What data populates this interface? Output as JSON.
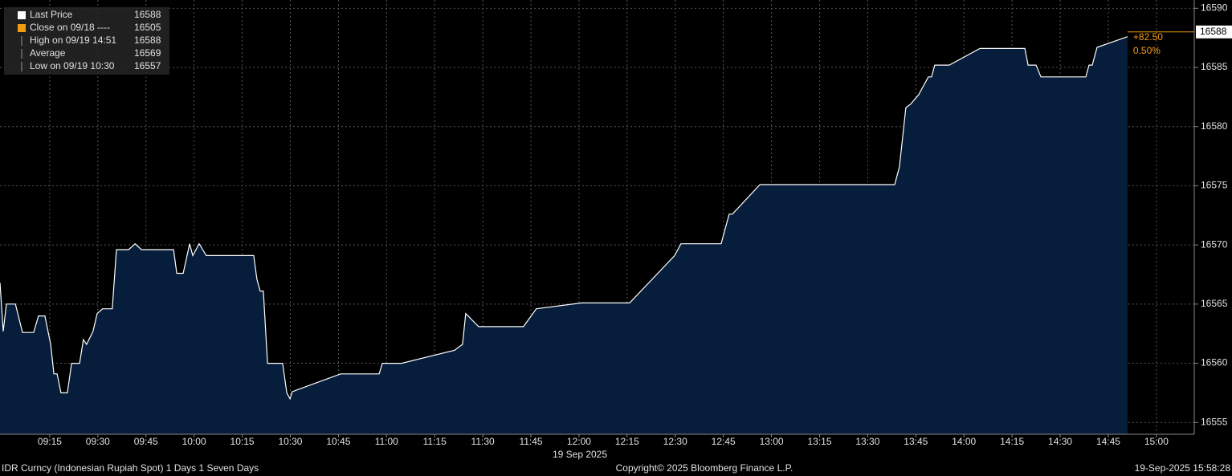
{
  "chart_data": {
    "type": "area",
    "x": [
      539.5,
      540.5,
      541.5,
      544.3,
      546.5,
      550,
      551.5,
      553.5,
      555.3,
      556.3,
      557.3,
      558.5,
      560.5,
      561.8,
      564.3,
      565.5,
      566.5,
      568.5,
      569.8,
      571.5,
      574.5,
      575.8,
      579.6,
      581.6,
      583.6,
      593.6,
      594.6,
      596.6,
      598.6,
      599.6,
      601.6,
      603.8,
      618.6,
      619.6,
      620.6,
      621.6,
      622.9,
      627.6,
      628.9,
      629.9,
      630.6,
      645.7,
      657.7,
      658.7,
      664.7,
      681.2,
      683.7,
      684.7,
      688.7,
      702.7,
      706.7,
      720.8,
      735.8,
      749.8,
      751.8,
      764.3,
      766.8,
      767.8,
      776.4,
      818.4,
      819.9,
      821.9,
      823.4,
      825.9,
      828.9,
      829.9,
      830.9,
      835.4,
      845,
      859,
      860,
      862.5,
      864,
      878,
      879,
      880,
      881.5,
      891
    ],
    "series": [
      {
        "name": "Last Price",
        "color": "#ffffff",
        "fill": "#061d3b",
        "values": [
          16566.8,
          16562.7,
          16565,
          16565,
          16562.6,
          16562.6,
          16564,
          16564,
          16561.6,
          16559.1,
          16559.1,
          16557.5,
          16557.5,
          16560,
          16560,
          16562,
          16561.6,
          16562.7,
          16564.2,
          16564.6,
          16564.6,
          16569.6,
          16569.6,
          16570.1,
          16569.6,
          16569.6,
          16567.6,
          16567.6,
          16570.1,
          16569.1,
          16570.1,
          16569.1,
          16569.1,
          16567.1,
          16566.1,
          16566.1,
          16560,
          16560,
          16557.5,
          16557,
          16557.6,
          16559.1,
          16559.1,
          16560,
          16560,
          16561.1,
          16561.6,
          16564.2,
          16563.1,
          16563.1,
          16564.6,
          16565.1,
          16565.1,
          16569.1,
          16570.1,
          16570.1,
          16572.6,
          16572.6,
          16575.1,
          16575.1,
          16576.6,
          16581.6,
          16581.9,
          16582.7,
          16584.2,
          16584.2,
          16585.2,
          16585.2,
          16586.6,
          16586.6,
          16585.2,
          16585.2,
          16584.2,
          16584.2,
          16585.2,
          16585.2,
          16586.7,
          16587.6
        ]
      }
    ],
    "xlim": [
      539.5,
      911.8
    ],
    "xticks": [
      {
        "value": 555,
        "label": "09:15"
      },
      {
        "value": 570,
        "label": "09:30"
      },
      {
        "value": 585,
        "label": "09:45"
      },
      {
        "value": 600,
        "label": "10:00"
      },
      {
        "value": 615,
        "label": "10:15"
      },
      {
        "value": 630,
        "label": "10:30"
      },
      {
        "value": 645,
        "label": "10:45"
      },
      {
        "value": 660,
        "label": "11:00"
      },
      {
        "value": 675,
        "label": "11:15"
      },
      {
        "value": 690,
        "label": "11:30"
      },
      {
        "value": 705,
        "label": "11:45"
      },
      {
        "value": 720,
        "label": "12:00"
      },
      {
        "value": 735,
        "label": "12:15"
      },
      {
        "value": 750,
        "label": "12:30"
      },
      {
        "value": 765,
        "label": "12:45"
      },
      {
        "value": 780,
        "label": "13:00"
      },
      {
        "value": 795,
        "label": "13:15"
      },
      {
        "value": 810,
        "label": "13:30"
      },
      {
        "value": 825,
        "label": "13:45"
      },
      {
        "value": 840,
        "label": "14:00"
      },
      {
        "value": 855,
        "label": "14:15"
      },
      {
        "value": 870,
        "label": "14:30"
      },
      {
        "value": 885,
        "label": "14:45"
      },
      {
        "value": 900,
        "label": "15:00"
      }
    ],
    "date_label": "19 Sep 2025",
    "ylim": [
      16554,
      16590.7
    ],
    "yticks": [
      16555,
      16560,
      16565,
      16570,
      16575,
      16580,
      16585,
      16590
    ],
    "grid": true,
    "last_price": 16588,
    "last_price_color": "#f39c12",
    "change": "+82.50",
    "change_pct": "0.50%",
    "legend": [
      {
        "name": "Last Price",
        "value": 16588
      },
      {
        "name": "Close on 09/18 ----",
        "value": 16505
      },
      {
        "name": "High on 09/19 14:51",
        "value": 16588
      },
      {
        "name": "Average",
        "value": 16569
      },
      {
        "name": "Low on 09/19 10:30",
        "value": 16557
      }
    ],
    "footer_left": "IDR Curncy (Indonesian Rupiah Spot) 1 Days 1 Seven Days",
    "footer_center": "Copyright© 2025 Bloomberg Finance L.P.",
    "footer_right": "19-Sep-2025 15:58:28"
  }
}
